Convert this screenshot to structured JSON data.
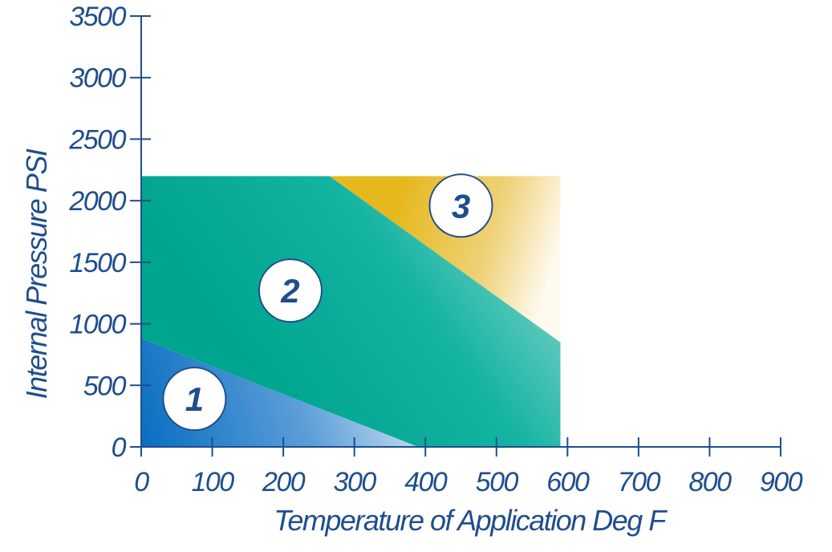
{
  "chart_data": {
    "type": "area",
    "xlabel": "Temperature of Application Deg F",
    "ylabel": "Internal Pressure PSI",
    "xlim": [
      0,
      900
    ],
    "ylim": [
      0,
      3500
    ],
    "x_ticks": [
      0,
      100,
      200,
      300,
      400,
      500,
      600,
      700,
      800,
      900
    ],
    "y_ticks": [
      0,
      500,
      1000,
      1500,
      2000,
      2500,
      3000,
      3500
    ],
    "grid": false,
    "legend": "none",
    "envelope": {
      "x_max": 590,
      "y_max": 2200
    },
    "zones": [
      {
        "label": "1",
        "color": "#0a6fc2",
        "polygon": [
          [
            0,
            0
          ],
          [
            0,
            880
          ],
          [
            390,
            0
          ]
        ],
        "label_pos": [
          75,
          390
        ]
      },
      {
        "label": "2",
        "color": "#009f8c",
        "polygon": [
          [
            0,
            880
          ],
          [
            0,
            2200
          ],
          [
            265,
            2200
          ],
          [
            590,
            850
          ],
          [
            590,
            0
          ],
          [
            390,
            0
          ]
        ],
        "label_pos": [
          210,
          1270
        ]
      },
      {
        "label": "3",
        "color": "#e8b818",
        "polygon": [
          [
            265,
            2200
          ],
          [
            590,
            2200
          ],
          [
            590,
            850
          ]
        ],
        "label_pos": [
          450,
          1960
        ]
      }
    ]
  }
}
